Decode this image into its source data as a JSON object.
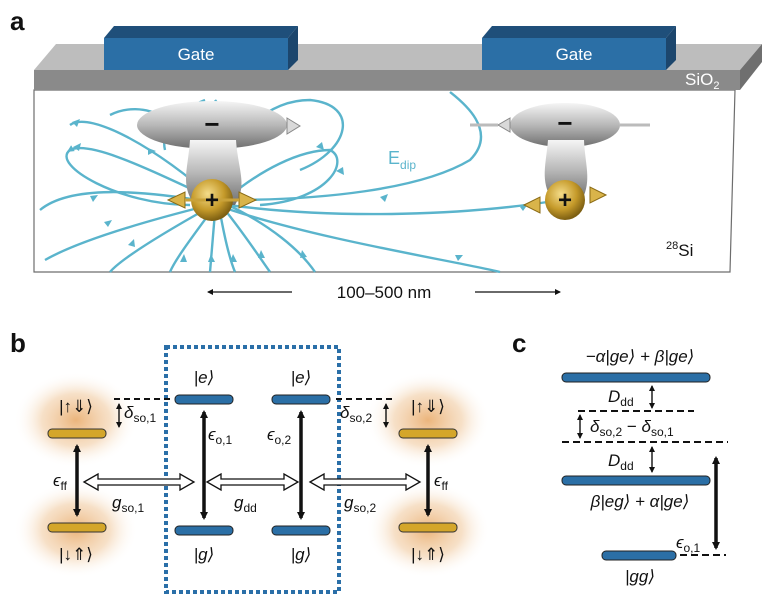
{
  "panels": {
    "a": "a",
    "b": "b",
    "c": "c"
  },
  "panel_a": {
    "gate_left": "Gate",
    "gate_right": "Gate",
    "oxide": "SiO",
    "oxide_sub": "2",
    "substrate_sup": "28",
    "substrate": "Si",
    "field_main": "E",
    "field_sub": "dip",
    "minus": "−",
    "plus": "+",
    "distance": "100–500 nm"
  },
  "panel_b": {
    "ket_ud_left": "|↑⇓⟩",
    "ket_du_left": "|↓⇑⟩",
    "ket_ud_right": "|↑⇓⟩",
    "ket_du_right": "|↓⇑⟩",
    "e1": "|e⟩",
    "e2": "|e⟩",
    "g1": "|g⟩",
    "g2": "|g⟩",
    "eps_ff_left": "ϵ",
    "eps_ff_left_sub": "ff",
    "eps_ff_right": "ϵ",
    "eps_ff_right_sub": "ff",
    "eps_o1": "ϵ",
    "eps_o1_sub": "o,1",
    "eps_o2": "ϵ",
    "eps_o2_sub": "o,2",
    "delta_so1": "δ",
    "delta_so1_sub": "so,1",
    "delta_so2": "δ",
    "delta_so2_sub": "so,2",
    "g_so1": "g",
    "g_so1_sub": "so,1",
    "g_dd": "g",
    "g_dd_sub": "dd",
    "g_so2": "g",
    "g_so2_sub": "so,2"
  },
  "panel_c": {
    "top_state": "−α|ge⟩ + β|ge⟩",
    "D_dd_top": "D",
    "D_dd_top_sub": "dd",
    "delta_diff_a": "δ",
    "delta_diff_a_sub": "so,2",
    "delta_diff_minus": " − ",
    "delta_diff_b": "δ",
    "delta_diff_b_sub": "so,1",
    "D_dd_bottom": "D",
    "D_dd_bottom_sub": "dd",
    "mid_state": "β|eg⟩ + α|ge⟩",
    "eps_o1": "ϵ",
    "eps_o1_sub": "o,1",
    "gg": "|gg⟩"
  },
  "colors": {
    "gate": "#2b6fa6",
    "gate_top": "#2a5f8f",
    "oxide": "#8a8a8a",
    "field": "#5ab4cc",
    "level_blue": "#2b6fa6",
    "level_gold": "#d4a62a",
    "glow": "#e8b27a",
    "box_dash": "#2a6fa8"
  }
}
